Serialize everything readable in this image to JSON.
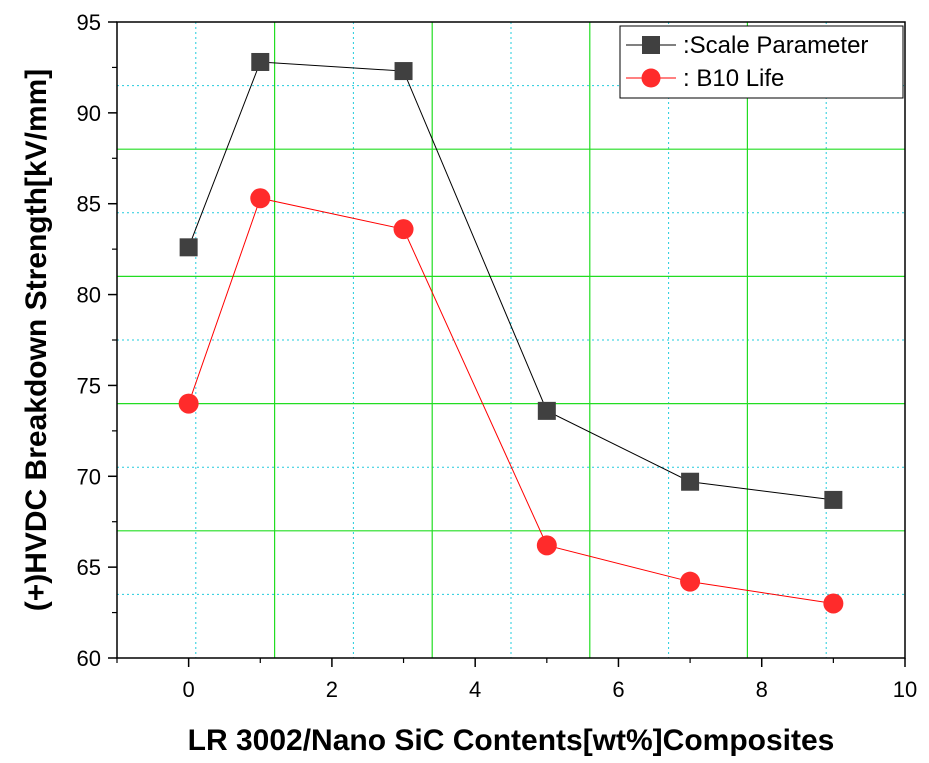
{
  "chart_data": {
    "type": "line",
    "xlabel": "LR 3002/Nano SiC Contents[wt%]Composites",
    "ylabel": "(+)HVDC Breakdown Strength[kV/mm]",
    "xlim": [
      -1,
      10
    ],
    "ylim": [
      60,
      95
    ],
    "xticks": [
      0,
      2,
      4,
      6,
      8,
      10
    ],
    "yticks": [
      60,
      65,
      70,
      75,
      80,
      85,
      90,
      95
    ],
    "x": [
      0,
      1,
      3,
      5,
      7,
      9
    ],
    "series": [
      {
        "name": ":Scale Parameter",
        "marker": "square",
        "color": "#404040",
        "line_color": "#000000",
        "values": [
          82.6,
          92.8,
          92.3,
          73.6,
          69.7,
          68.7
        ]
      },
      {
        "name": ": B10 Life",
        "marker": "circle",
        "color": "#ff2b2b",
        "line_color": "#ff0000",
        "values": [
          74.0,
          85.3,
          83.6,
          66.2,
          64.2,
          63.0
        ]
      }
    ],
    "grid": true,
    "grid_major_color": "#22dd22",
    "grid_minor_color": "#22ccdd",
    "legend_position": "top-right"
  }
}
